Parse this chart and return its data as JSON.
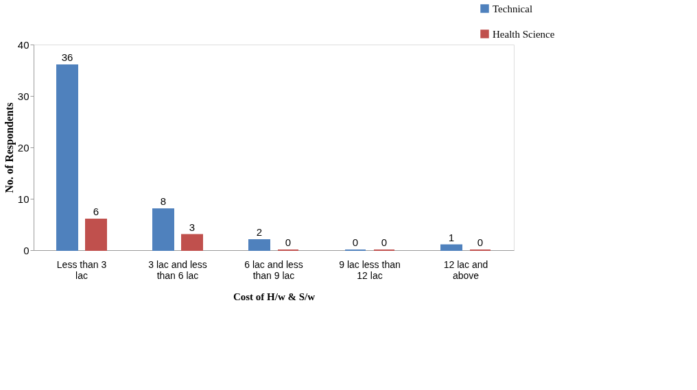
{
  "chart_data": {
    "type": "bar",
    "xlabel": "Cost of H/w & S/w",
    "ylabel": "No. of Respondents",
    "categories": [
      "Less than  3 lac",
      "3 lac and less than 6 lac",
      "6 lac and less than 9 lac",
      "9 lac less than 12 lac",
      "12 lac and above"
    ],
    "series": [
      {
        "name": "Technical",
        "color": "#4f81bd",
        "values": [
          36,
          8,
          2,
          0,
          1
        ]
      },
      {
        "name": "Health Science",
        "color": "#c0504d",
        "values": [
          6,
          3,
          0,
          0,
          0
        ]
      }
    ],
    "ylim": [
      0,
      40
    ],
    "yticks": [
      0,
      10,
      20,
      30,
      40
    ],
    "grid": false,
    "legend": "top right",
    "data_labels": true
  }
}
